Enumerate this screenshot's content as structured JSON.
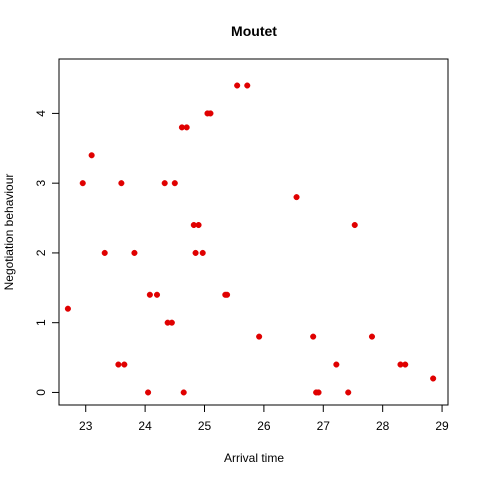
{
  "chart_data": {
    "type": "scatter",
    "title": "Moutet",
    "xlabel": "Arrival time",
    "ylabel": "Negotiation behaviour",
    "xlim": [
      22.55,
      29.1
    ],
    "ylim": [
      -0.18,
      4.78
    ],
    "x_ticks": [
      23,
      24,
      25,
      26,
      27,
      28,
      29
    ],
    "y_ticks": [
      0,
      1,
      2,
      3,
      4
    ],
    "grid": false,
    "legend": "none",
    "point_color": "#e00000",
    "points": [
      {
        "x": 22.7,
        "y": 1.2
      },
      {
        "x": 22.95,
        "y": 3.0
      },
      {
        "x": 23.1,
        "y": 3.4
      },
      {
        "x": 23.32,
        "y": 2.0
      },
      {
        "x": 23.55,
        "y": 0.4
      },
      {
        "x": 23.6,
        "y": 3.0
      },
      {
        "x": 23.65,
        "y": 0.4
      },
      {
        "x": 23.82,
        "y": 2.0
      },
      {
        "x": 24.05,
        "y": 0.0
      },
      {
        "x": 24.08,
        "y": 1.4
      },
      {
        "x": 24.2,
        "y": 1.4
      },
      {
        "x": 24.33,
        "y": 3.0
      },
      {
        "x": 24.38,
        "y": 1.0
      },
      {
        "x": 24.45,
        "y": 1.0
      },
      {
        "x": 24.5,
        "y": 3.0
      },
      {
        "x": 24.62,
        "y": 3.8
      },
      {
        "x": 24.65,
        "y": 0.0
      },
      {
        "x": 24.7,
        "y": 3.8
      },
      {
        "x": 24.82,
        "y": 2.4
      },
      {
        "x": 24.85,
        "y": 2.0
      },
      {
        "x": 24.9,
        "y": 2.4
      },
      {
        "x": 24.97,
        "y": 2.0
      },
      {
        "x": 25.05,
        "y": 4.0
      },
      {
        "x": 25.1,
        "y": 4.0
      },
      {
        "x": 25.35,
        "y": 1.4
      },
      {
        "x": 25.38,
        "y": 1.4
      },
      {
        "x": 25.55,
        "y": 4.4
      },
      {
        "x": 25.72,
        "y": 4.4
      },
      {
        "x": 25.92,
        "y": 0.8
      },
      {
        "x": 26.55,
        "y": 2.8
      },
      {
        "x": 26.83,
        "y": 0.8
      },
      {
        "x": 26.88,
        "y": 0.0
      },
      {
        "x": 26.92,
        "y": 0.0
      },
      {
        "x": 27.22,
        "y": 0.4
      },
      {
        "x": 27.42,
        "y": 0.0
      },
      {
        "x": 27.53,
        "y": 2.4
      },
      {
        "x": 27.82,
        "y": 0.8
      },
      {
        "x": 28.3,
        "y": 0.4
      },
      {
        "x": 28.38,
        "y": 0.4
      },
      {
        "x": 28.85,
        "y": 0.2
      }
    ]
  }
}
